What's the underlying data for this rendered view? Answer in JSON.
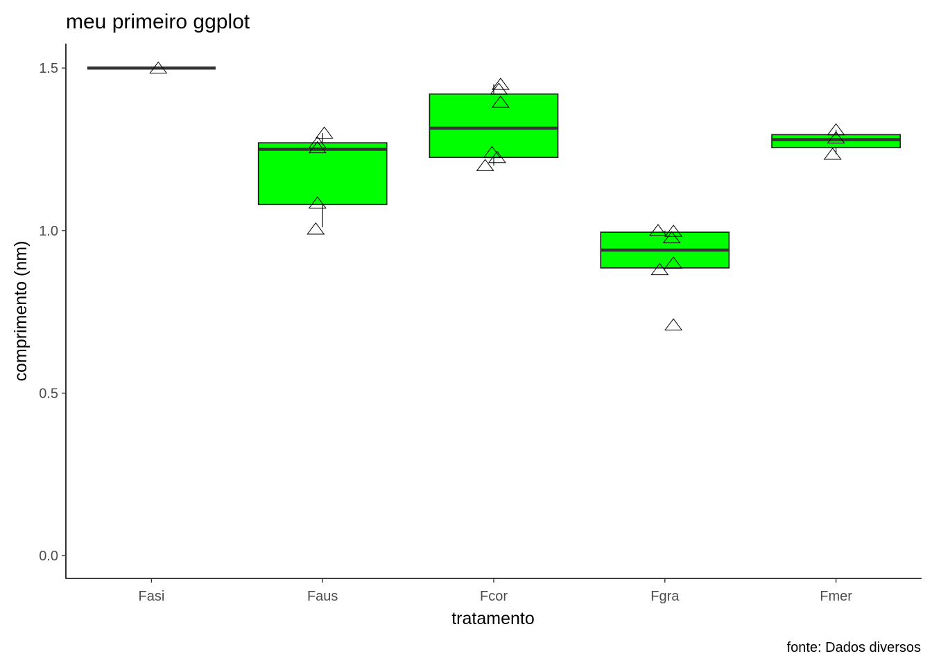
{
  "chart_data": {
    "type": "boxplot",
    "title": "meu primeiro ggplot",
    "xlabel": "tratamento",
    "ylabel": "comprimento (nm)",
    "caption": "fonte: Dados diversos",
    "ylim": [
      -0.07,
      1.575
    ],
    "yticks": [
      0.0,
      0.5,
      1.0,
      1.5
    ],
    "ytick_labels": [
      "0.0",
      "0.5",
      "1.0",
      "1.5"
    ],
    "categories": [
      "Fasi",
      "Faus",
      "Fcor",
      "Fgra",
      "Fmer"
    ],
    "fill_color": "#00ff00",
    "median_color": "#333333",
    "grid": false,
    "legend": "none",
    "boxes": [
      {
        "category": "Fasi",
        "q1": 1.5,
        "median": 1.5,
        "q3": 1.5,
        "whisker_low": 1.5,
        "whisker_high": 1.5
      },
      {
        "category": "Faus",
        "q1": 1.08,
        "median": 1.25,
        "q3": 1.27,
        "whisker_low": 1.01,
        "whisker_high": 1.3
      },
      {
        "category": "Fcor",
        "q1": 1.225,
        "median": 1.315,
        "q3": 1.42,
        "whisker_low": 1.2,
        "whisker_high": 1.45
      },
      {
        "category": "Fgra",
        "q1": 0.885,
        "median": 0.94,
        "q3": 0.995,
        "whisker_low": 0.88,
        "whisker_high": 1.0
      },
      {
        "category": "Fmer",
        "q1": 1.255,
        "median": 1.28,
        "q3": 1.295,
        "whisker_low": 1.235,
        "whisker_high": 1.31
      }
    ],
    "points": [
      {
        "category": "Fasi",
        "y": 1.5,
        "jitter": 0.04
      },
      {
        "category": "Faus",
        "y": 1.3,
        "jitter": 0.01
      },
      {
        "category": "Faus",
        "y": 1.27,
        "jitter": -0.03
      },
      {
        "category": "Faus",
        "y": 1.255,
        "jitter": -0.03
      },
      {
        "category": "Faus",
        "y": 1.085,
        "jitter": -0.03
      },
      {
        "category": "Faus",
        "y": 1.005,
        "jitter": -0.04
      },
      {
        "category": "Fcor",
        "y": 1.45,
        "jitter": 0.04
      },
      {
        "category": "Fcor",
        "y": 1.435,
        "jitter": 0.03
      },
      {
        "category": "Fcor",
        "y": 1.395,
        "jitter": 0.04
      },
      {
        "category": "Fcor",
        "y": 1.24,
        "jitter": -0.01
      },
      {
        "category": "Fcor",
        "y": 1.225,
        "jitter": 0.02
      },
      {
        "category": "Fcor",
        "y": 1.2,
        "jitter": -0.05
      },
      {
        "category": "Fgra",
        "y": 1.0,
        "jitter": -0.04
      },
      {
        "category": "Fgra",
        "y": 0.998,
        "jitter": 0.05
      },
      {
        "category": "Fgra",
        "y": 0.978,
        "jitter": 0.04
      },
      {
        "category": "Fgra",
        "y": 0.9,
        "jitter": 0.05
      },
      {
        "category": "Fgra",
        "y": 0.88,
        "jitter": -0.03
      },
      {
        "category": "Fgra",
        "y": 0.71,
        "jitter": 0.05
      },
      {
        "category": "Fmer",
        "y": 1.31,
        "jitter": 0.0
      },
      {
        "category": "Fmer",
        "y": 1.285,
        "jitter": 0.0
      },
      {
        "category": "Fmer",
        "y": 1.235,
        "jitter": -0.02
      }
    ]
  }
}
